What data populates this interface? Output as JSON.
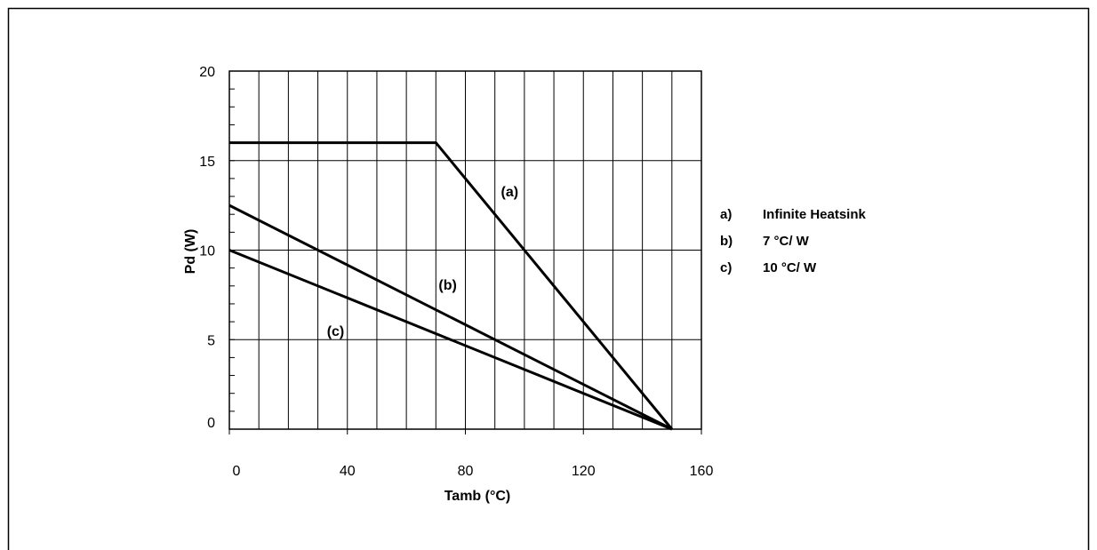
{
  "chart_data": {
    "type": "line",
    "title": "",
    "xlabel": "Tamb (°C)",
    "ylabel": "Pd (W)",
    "xlim": [
      0,
      160
    ],
    "ylim": [
      0,
      20
    ],
    "x_ticks": [
      0,
      40,
      80,
      120,
      160
    ],
    "y_ticks": [
      0,
      5,
      10,
      15,
      20
    ],
    "x_tick_labels": [
      "0",
      "40",
      "80",
      "120",
      "160"
    ],
    "y_tick_labels": [
      "0",
      "5",
      "10",
      "15",
      "20"
    ],
    "x_grid_step": 10,
    "y_grid_step": 5,
    "y_minor_step": 1,
    "grid": true,
    "series": [
      {
        "id": "a",
        "label": "(a)",
        "x": [
          0,
          70,
          150
        ],
        "y": [
          16,
          16,
          0
        ],
        "label_at": [
          95,
          13
        ]
      },
      {
        "id": "b",
        "label": "(b)",
        "x": [
          0,
          150
        ],
        "y": [
          12.5,
          0
        ],
        "label_at": [
          74,
          7.8
        ]
      },
      {
        "id": "c",
        "label": "(c)",
        "x": [
          0,
          150
        ],
        "y": [
          10,
          0
        ],
        "label_at": [
          36,
          5.2
        ]
      }
    ],
    "legend": {
      "placement": "right",
      "entries": [
        {
          "key": "a)",
          "text": "Infinite Heatsink"
        },
        {
          "key": "b)",
          "text": "7 °C/ W"
        },
        {
          "key": "c)",
          "text": "10  °C/ W"
        }
      ]
    },
    "colors": {
      "line": "#000000",
      "grid": "#000000",
      "background": "#ffffff"
    }
  }
}
